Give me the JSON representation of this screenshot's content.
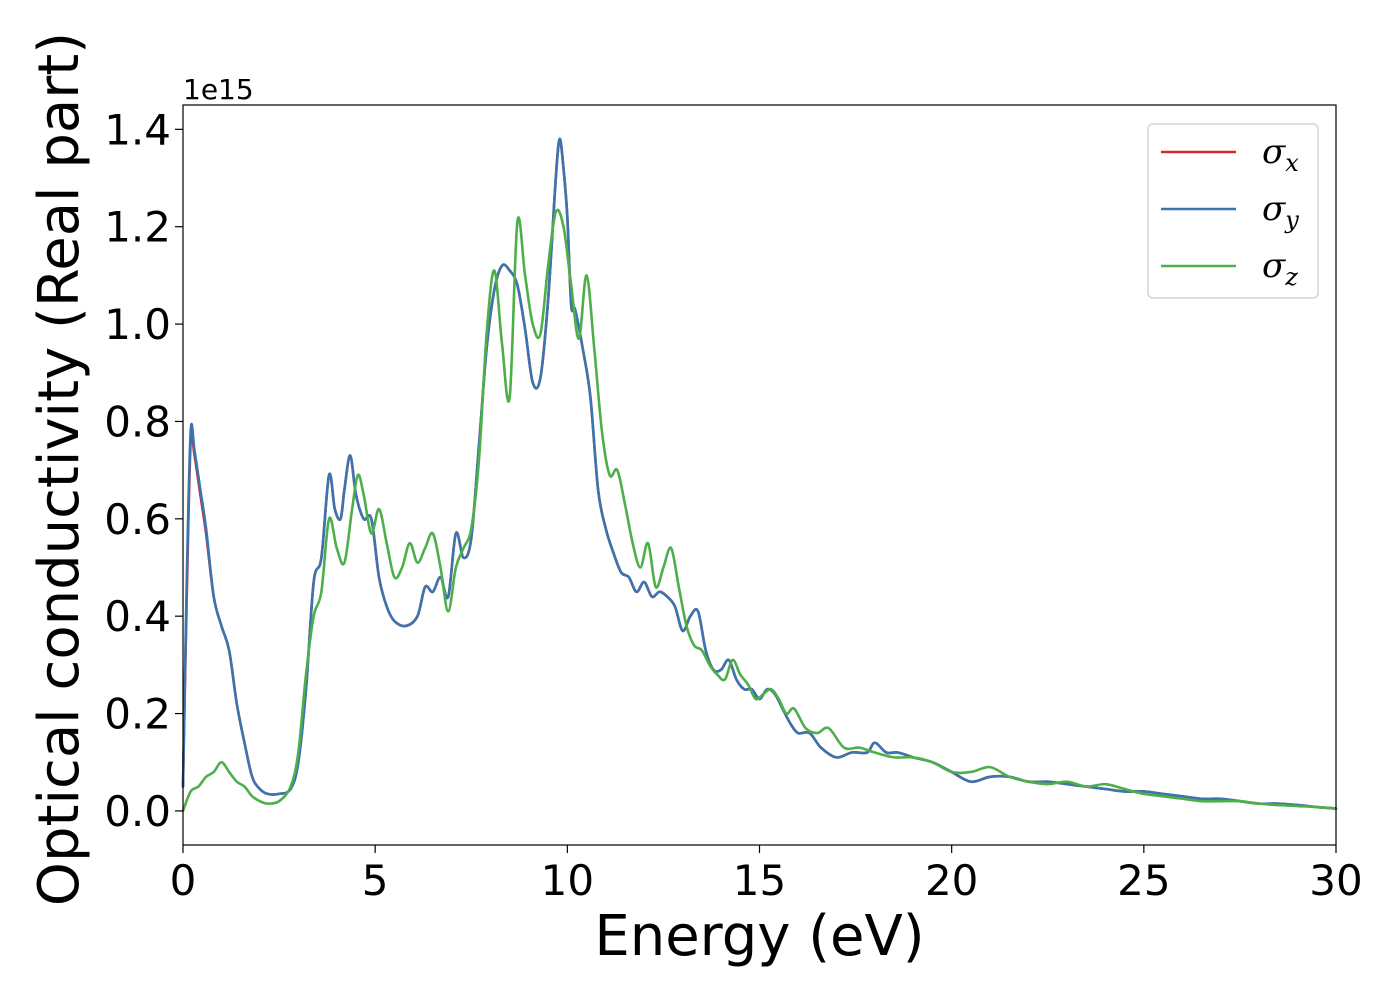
{
  "chart_data": {
    "type": "line",
    "title": "",
    "xlabel": "Energy (eV)",
    "ylabel": "Optical conductivity (Real part)",
    "y_offset_text": "1e15",
    "y_scale": 1000000000000000.0,
    "xlim": [
      0,
      30
    ],
    "ylim": [
      -0.07,
      1.45
    ],
    "xticks": [
      0,
      5,
      10,
      15,
      20,
      25,
      30
    ],
    "xtick_labels": [
      "0",
      "5",
      "10",
      "15",
      "20",
      "25",
      "30"
    ],
    "yticks": [
      0.0,
      0.2,
      0.4,
      0.6,
      0.8,
      1.0,
      1.2,
      1.4
    ],
    "ytick_labels": [
      "0.0",
      "0.2",
      "0.4",
      "0.6",
      "0.8",
      "1.0",
      "1.2",
      "1.4"
    ],
    "grid": false,
    "legend_position": "top-right",
    "series": [
      {
        "name": "σ_x",
        "symbol": "σ",
        "subscript": "x",
        "color": "#d62728",
        "x": [
          0,
          0.1,
          0.2,
          0.3,
          0.45,
          0.6,
          0.8,
          1.0,
          1.2,
          1.4,
          1.6,
          1.8,
          2.0,
          2.2,
          2.5,
          2.8,
          3.0,
          3.2,
          3.4,
          3.6,
          3.8,
          3.95,
          4.1,
          4.2,
          4.35,
          4.5,
          4.7,
          4.9,
          5.1,
          5.3,
          5.5,
          5.8,
          6.1,
          6.3,
          6.5,
          6.7,
          6.9,
          7.1,
          7.3,
          7.5,
          7.7,
          7.9,
          8.1,
          8.3,
          8.5,
          8.7,
          8.9,
          9.1,
          9.3,
          9.5,
          9.7,
          9.8,
          9.9,
          10.0,
          10.1,
          10.2,
          10.4,
          10.6,
          10.8,
          11.0,
          11.2,
          11.4,
          11.6,
          11.8,
          12.0,
          12.2,
          12.4,
          12.6,
          12.8,
          13.0,
          13.2,
          13.4,
          13.6,
          13.8,
          14.0,
          14.2,
          14.4,
          14.6,
          14.8,
          15.0,
          15.2,
          15.4,
          15.6,
          15.8,
          16.0,
          16.3,
          16.6,
          17.0,
          17.4,
          17.8,
          18.0,
          18.3,
          18.6,
          19.0,
          19.5,
          20.0,
          20.5,
          21.0,
          21.5,
          22.0,
          22.5,
          23.0,
          23.5,
          24.0,
          24.5,
          25.0,
          25.5,
          26.0,
          26.5,
          27.0,
          27.5,
          28.0,
          28.5,
          29.0,
          29.5,
          30.0
        ],
        "y": [
          0.05,
          0.45,
          0.76,
          0.73,
          0.65,
          0.57,
          0.44,
          0.38,
          0.33,
          0.22,
          0.14,
          0.07,
          0.045,
          0.035,
          0.035,
          0.045,
          0.1,
          0.25,
          0.47,
          0.52,
          0.69,
          0.62,
          0.6,
          0.66,
          0.73,
          0.65,
          0.6,
          0.6,
          0.48,
          0.42,
          0.39,
          0.38,
          0.4,
          0.46,
          0.45,
          0.48,
          0.44,
          0.57,
          0.52,
          0.56,
          0.75,
          0.95,
          1.07,
          1.12,
          1.11,
          1.08,
          0.99,
          0.88,
          0.89,
          1.05,
          1.3,
          1.38,
          1.32,
          1.22,
          1.04,
          1.03,
          0.95,
          0.85,
          0.66,
          0.58,
          0.53,
          0.49,
          0.48,
          0.45,
          0.47,
          0.44,
          0.45,
          0.44,
          0.42,
          0.37,
          0.4,
          0.41,
          0.33,
          0.29,
          0.29,
          0.31,
          0.27,
          0.25,
          0.25,
          0.23,
          0.25,
          0.24,
          0.21,
          0.18,
          0.16,
          0.16,
          0.13,
          0.11,
          0.12,
          0.12,
          0.14,
          0.12,
          0.12,
          0.11,
          0.1,
          0.08,
          0.06,
          0.07,
          0.07,
          0.06,
          0.06,
          0.055,
          0.05,
          0.045,
          0.04,
          0.04,
          0.035,
          0.03,
          0.025,
          0.025,
          0.02,
          0.015,
          0.015,
          0.012,
          0.008,
          0.005
        ]
      },
      {
        "name": "σ_y",
        "symbol": "σ",
        "subscript": "y",
        "color": "#3b75af",
        "x": [
          0,
          0.1,
          0.2,
          0.3,
          0.45,
          0.6,
          0.8,
          1.0,
          1.2,
          1.4,
          1.6,
          1.8,
          2.0,
          2.2,
          2.5,
          2.8,
          3.0,
          3.2,
          3.4,
          3.6,
          3.8,
          3.95,
          4.1,
          4.2,
          4.35,
          4.5,
          4.7,
          4.9,
          5.1,
          5.3,
          5.5,
          5.8,
          6.1,
          6.3,
          6.5,
          6.7,
          6.9,
          7.1,
          7.3,
          7.5,
          7.7,
          7.9,
          8.1,
          8.3,
          8.5,
          8.7,
          8.9,
          9.1,
          9.3,
          9.5,
          9.7,
          9.8,
          9.9,
          10.0,
          10.1,
          10.2,
          10.4,
          10.6,
          10.8,
          11.0,
          11.2,
          11.4,
          11.6,
          11.8,
          12.0,
          12.2,
          12.4,
          12.6,
          12.8,
          13.0,
          13.2,
          13.4,
          13.6,
          13.8,
          14.0,
          14.2,
          14.4,
          14.6,
          14.8,
          15.0,
          15.2,
          15.4,
          15.6,
          15.8,
          16.0,
          16.3,
          16.6,
          17.0,
          17.4,
          17.8,
          18.0,
          18.3,
          18.6,
          19.0,
          19.5,
          20.0,
          20.5,
          21.0,
          21.5,
          22.0,
          22.5,
          23.0,
          23.5,
          24.0,
          24.5,
          25.0,
          25.5,
          26.0,
          26.5,
          27.0,
          27.5,
          28.0,
          28.5,
          29.0,
          29.5,
          30.0
        ],
        "y": [
          0.05,
          0.48,
          0.78,
          0.74,
          0.66,
          0.58,
          0.44,
          0.38,
          0.33,
          0.22,
          0.14,
          0.07,
          0.045,
          0.035,
          0.035,
          0.045,
          0.1,
          0.25,
          0.47,
          0.52,
          0.69,
          0.62,
          0.6,
          0.66,
          0.73,
          0.65,
          0.6,
          0.6,
          0.48,
          0.42,
          0.39,
          0.38,
          0.4,
          0.46,
          0.45,
          0.48,
          0.44,
          0.57,
          0.52,
          0.56,
          0.75,
          0.95,
          1.07,
          1.12,
          1.11,
          1.08,
          0.99,
          0.88,
          0.89,
          1.05,
          1.3,
          1.38,
          1.32,
          1.22,
          1.04,
          1.03,
          0.95,
          0.85,
          0.66,
          0.58,
          0.53,
          0.49,
          0.48,
          0.45,
          0.47,
          0.44,
          0.45,
          0.44,
          0.42,
          0.37,
          0.4,
          0.41,
          0.33,
          0.29,
          0.29,
          0.31,
          0.27,
          0.25,
          0.25,
          0.23,
          0.25,
          0.24,
          0.21,
          0.18,
          0.16,
          0.16,
          0.13,
          0.11,
          0.12,
          0.12,
          0.14,
          0.12,
          0.12,
          0.11,
          0.1,
          0.08,
          0.06,
          0.07,
          0.07,
          0.06,
          0.06,
          0.055,
          0.05,
          0.045,
          0.04,
          0.04,
          0.035,
          0.03,
          0.025,
          0.025,
          0.02,
          0.015,
          0.015,
          0.012,
          0.008,
          0.005
        ]
      },
      {
        "name": "σ_z",
        "symbol": "σ",
        "subscript": "z",
        "color": "#4daf4a",
        "x": [
          0,
          0.2,
          0.4,
          0.6,
          0.8,
          1.0,
          1.2,
          1.4,
          1.6,
          1.8,
          2.0,
          2.2,
          2.5,
          2.8,
          3.0,
          3.2,
          3.4,
          3.6,
          3.8,
          4.0,
          4.2,
          4.4,
          4.55,
          4.7,
          4.9,
          5.1,
          5.3,
          5.5,
          5.7,
          5.9,
          6.1,
          6.3,
          6.5,
          6.7,
          6.9,
          7.1,
          7.3,
          7.5,
          7.7,
          7.9,
          8.1,
          8.3,
          8.5,
          8.7,
          8.9,
          9.1,
          9.3,
          9.5,
          9.7,
          9.9,
          10.1,
          10.3,
          10.5,
          10.7,
          10.9,
          11.1,
          11.3,
          11.5,
          11.7,
          11.9,
          12.1,
          12.3,
          12.5,
          12.7,
          12.9,
          13.1,
          13.3,
          13.5,
          13.7,
          13.9,
          14.1,
          14.3,
          14.5,
          14.7,
          14.9,
          15.1,
          15.3,
          15.5,
          15.7,
          15.9,
          16.2,
          16.5,
          16.8,
          17.2,
          17.6,
          18.0,
          18.5,
          19.0,
          19.5,
          20.0,
          20.5,
          21.0,
          21.5,
          22.0,
          22.5,
          23.0,
          23.5,
          24.0,
          24.5,
          25.0,
          25.5,
          26.0,
          26.5,
          27.0,
          27.5,
          28.0,
          28.5,
          29.0,
          29.5,
          30.0
        ],
        "y": [
          0.0,
          0.04,
          0.05,
          0.07,
          0.08,
          0.1,
          0.08,
          0.06,
          0.05,
          0.03,
          0.02,
          0.015,
          0.02,
          0.05,
          0.12,
          0.28,
          0.4,
          0.45,
          0.6,
          0.54,
          0.51,
          0.62,
          0.69,
          0.65,
          0.57,
          0.62,
          0.55,
          0.48,
          0.5,
          0.55,
          0.51,
          0.54,
          0.57,
          0.5,
          0.41,
          0.5,
          0.54,
          0.58,
          0.72,
          0.98,
          1.11,
          0.96,
          0.85,
          1.21,
          1.1,
          1.0,
          0.98,
          1.12,
          1.23,
          1.2,
          1.08,
          0.97,
          1.1,
          0.95,
          0.78,
          0.69,
          0.7,
          0.63,
          0.55,
          0.5,
          0.55,
          0.46,
          0.5,
          0.54,
          0.46,
          0.38,
          0.34,
          0.33,
          0.3,
          0.28,
          0.27,
          0.31,
          0.28,
          0.26,
          0.23,
          0.24,
          0.25,
          0.23,
          0.2,
          0.21,
          0.17,
          0.16,
          0.17,
          0.13,
          0.13,
          0.12,
          0.11,
          0.11,
          0.1,
          0.08,
          0.08,
          0.09,
          0.07,
          0.06,
          0.055,
          0.06,
          0.05,
          0.055,
          0.045,
          0.035,
          0.03,
          0.025,
          0.02,
          0.02,
          0.02,
          0.015,
          0.012,
          0.01,
          0.008,
          0.005
        ]
      }
    ]
  }
}
